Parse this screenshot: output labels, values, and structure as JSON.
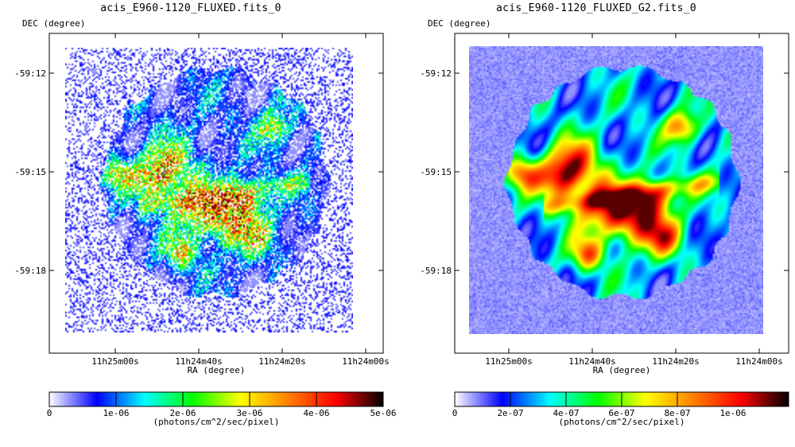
{
  "chart_data": [
    {
      "type": "heatmap",
      "title": "acis_E960-1120_FLUXED.fits_0",
      "xlabel": "RA (degree)",
      "ylabel": "DEC (degree)",
      "x_ticks": [
        "11h25m00s",
        "11h24m40s",
        "11h24m20s",
        "11h24m00s"
      ],
      "y_ticks": [
        "-59:12",
        "-59:15",
        "-59:18"
      ],
      "colorbar": {
        "label": "(photons/cm^2/sec/pixel)",
        "range": [
          0,
          5e-06
        ],
        "tick_values": [
          0,
          1e-06,
          2e-06,
          3e-06,
          4e-06,
          5e-06
        ],
        "tick_labels": [
          "0",
          "1e-06",
          "2e-06",
          "3e-06",
          "4e-06",
          "5e-06"
        ],
        "colormap": [
          "#ffffff",
          "#0000ff",
          "#00ffff",
          "#00ff00",
          "#ffff00",
          "#ff8000",
          "#ff0000",
          "#000000"
        ]
      },
      "smoothing": "none",
      "grid": false
    },
    {
      "type": "heatmap",
      "title": "acis_E960-1120_FLUXED_G2.fits_0",
      "xlabel": "RA (degree)",
      "ylabel": "DEC (degree)",
      "x_ticks": [
        "11h25m00s",
        "11h24m40s",
        "11h24m20s",
        "11h24m00s"
      ],
      "y_ticks": [
        "-59:12",
        "-59:15",
        "-59:18"
      ],
      "colorbar": {
        "label": "(photons/cm^2/sec/pixel)",
        "range": [
          0,
          1.2e-06
        ],
        "tick_values": [
          0,
          2e-07,
          4e-07,
          6e-07,
          8e-07,
          1e-06
        ],
        "tick_labels": [
          "0",
          "2e-07",
          "4e-07",
          "6e-07",
          "8e-07",
          "1e-06"
        ],
        "colormap": [
          "#ffffff",
          "#0000ff",
          "#00ffff",
          "#00ff00",
          "#ffff00",
          "#ff8000",
          "#ff0000",
          "#000000"
        ]
      },
      "smoothing": "gaussian",
      "grid": false
    }
  ]
}
